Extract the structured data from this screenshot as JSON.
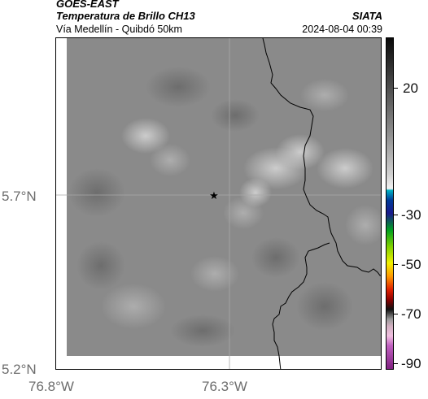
{
  "header": {
    "satellite": "GOES-EAST",
    "product": "Temperatura de Brillo CH13",
    "region": "Vía Medellín - Quibdó 50km",
    "organization": "SIATA",
    "datetime": "2024-08-04 00:39"
  },
  "axes": {
    "lat_ticks": [
      "5.7°N",
      "5.2°N"
    ],
    "lon_ticks": [
      "76.8°W",
      "76.3°W"
    ]
  },
  "colorbar": {
    "ticks": [
      "20",
      "-30",
      "-50",
      "-70",
      "-90"
    ]
  },
  "marker": {
    "symbol": "★"
  }
}
